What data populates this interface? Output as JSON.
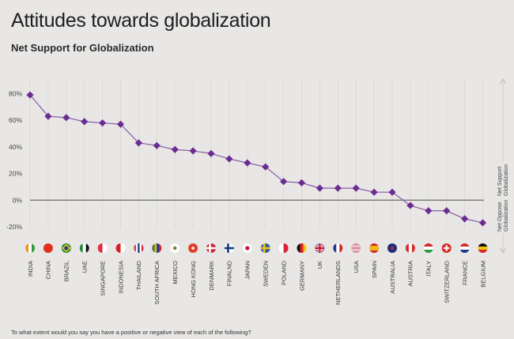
{
  "header": {
    "title": "Attitudes towards globalization",
    "subtitle": "Net Support for Globalization"
  },
  "footnote": "To what extent would you say you have a positive or negative view of each of the following?",
  "side_axis": {
    "support_label_1": "Net Support",
    "support_label_2": "Globalization",
    "oppose_label_1": "Net Oppose",
    "oppose_label_2": "Globalization"
  },
  "colors": {
    "series": "#6a2c91",
    "zero_line": "#7a7a72",
    "grid": "#d9d7d5"
  },
  "chart_data": {
    "type": "line",
    "title": "Attitudes towards globalization",
    "subtitle": "Net Support for Globalization",
    "xlabel": "",
    "ylabel": "",
    "ylim": [
      -20,
      80
    ],
    "yticks": [
      80,
      60,
      40,
      20,
      0,
      -20
    ],
    "ytick_labels": [
      "80%",
      "60%",
      "40%",
      "20%",
      "0%",
      "-20%"
    ],
    "grid": "vertical",
    "categories": [
      "INDIA",
      "CHINA",
      "BRAZIL",
      "UAE",
      "SINGAPORE",
      "INDONESIA",
      "THAILAND",
      "SOUTH AFRICA",
      "MEXICO",
      "HONG KONG",
      "DENMARK",
      "FINALND",
      "JAPAN",
      "SWEDEN",
      "POLAND",
      "GERMANY",
      "UK",
      "NETHERLANDS",
      "USA",
      "SPAIN",
      "AUSTRALIA",
      "AUSTRIA",
      "ITALY",
      "SWITZERLAND",
      "FRANCE",
      "BELGIUM"
    ],
    "series": [
      {
        "name": "Net Support for Globalization",
        "values": [
          79,
          63,
          62,
          59,
          58,
          57,
          43,
          41,
          38,
          37,
          35,
          31,
          28,
          25,
          14,
          13,
          9,
          9,
          9,
          6,
          6,
          -4,
          -8,
          -8,
          -14,
          -17
        ]
      }
    ],
    "flag_icons": [
      "india-flag-icon",
      "china-flag-icon",
      "brazil-flag-icon",
      "uae-flag-icon",
      "singapore-flag-icon",
      "indonesia-flag-icon",
      "thailand-flag-icon",
      "south-africa-flag-icon",
      "mexico-flag-icon",
      "hong-kong-flag-icon",
      "denmark-flag-icon",
      "finland-flag-icon",
      "japan-flag-icon",
      "sweden-flag-icon",
      "poland-flag-icon",
      "germany-flag-icon",
      "uk-flag-icon",
      "netherlands-flag-icon",
      "usa-flag-icon",
      "spain-flag-icon",
      "australia-flag-icon",
      "austria-flag-icon",
      "italy-flag-icon",
      "switzerland-flag-icon",
      "france-flag-icon",
      "belgium-flag-icon"
    ]
  }
}
